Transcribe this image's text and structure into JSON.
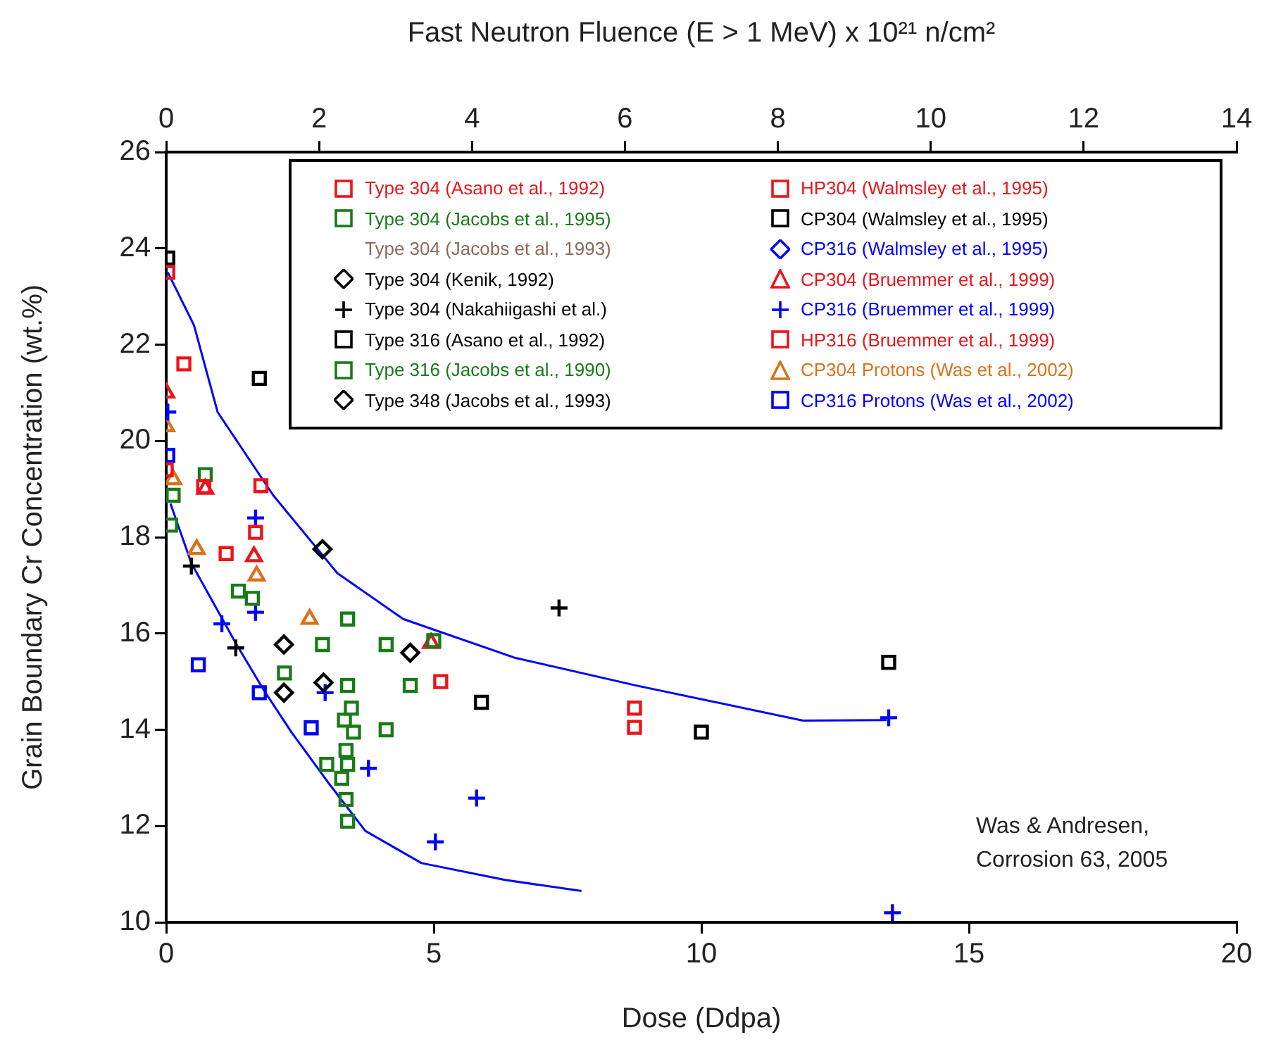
{
  "chart_data": {
    "type": "scatter",
    "xlabel": "Dose (Ddpa)",
    "ylabel": "Grain Boundary Cr Concentration (wt.%)",
    "x2label": "Fast Neutron Fluence (E > 1 MeV) x 10²¹ n/cm²",
    "xlim": [
      0,
      20
    ],
    "xticks": [
      0,
      5,
      10,
      15,
      20
    ],
    "x2lim": [
      0,
      14
    ],
    "x2ticks": [
      0,
      2,
      4,
      6,
      8,
      10,
      12,
      14
    ],
    "ylim": [
      10,
      26
    ],
    "yticks": [
      10,
      12,
      14,
      16,
      18,
      20,
      22,
      24,
      26
    ],
    "grid": false,
    "legend": "top right",
    "annotations": [
      "Was & Andresen,",
      "Corrosion 63, 2005"
    ],
    "series": [
      {
        "name": "Type 304 (Asano et al., 1992)",
        "color": "#e8161b",
        "marker": "square",
        "x": [
          0.03,
          0.33,
          1.77,
          1.67,
          0.7,
          0
        ],
        "values": [
          23.5,
          21.6,
          19.07,
          18.1,
          19.05,
          19.4
        ]
      },
      {
        "name": "Type 304 (Jacobs et al., 1995)",
        "color": "#1a7a1a",
        "marker": "square",
        "x": [
          0.73,
          0.13,
          1.35,
          1.61,
          2.92,
          2.21,
          4.11,
          5.0,
          4.56,
          4.11,
          3.0
        ],
        "values": [
          19.3,
          18.87,
          16.88,
          16.73,
          15.77,
          15.18,
          15.77,
          15.85,
          14.92,
          14.0,
          13.28
        ]
      },
      {
        "name": "Type 304 (Jacobs et al., 1993)",
        "color": "#8b6a5a",
        "marker": "none"
      },
      {
        "name": "Type 304 (Kenik, 1992)",
        "color": "#000000",
        "marker": "diamond",
        "x": [
          2.92,
          2.2
        ],
        "values": [
          17.75,
          15.77
        ]
      },
      {
        "name": "Type 304 (Nakahiigashi et al.)",
        "color": "#000000",
        "marker": "cross",
        "x": [
          0.47,
          1.3,
          7.34
        ],
        "values": [
          17.4,
          15.7,
          16.53
        ]
      },
      {
        "name": "Type 316 (Asano et al., 1992)",
        "color": "#000000",
        "marker": "square",
        "x": [
          5.89,
          10.0
        ],
        "values": [
          14.57,
          13.95
        ]
      },
      {
        "name": "Type 316 (Jacobs et al., 1990)",
        "color": "#1a7a1a",
        "marker": "square",
        "x": [
          0.08,
          3.39,
          3.39,
          3.46,
          3.33,
          3.5,
          3.36,
          3.39,
          3.28,
          3.36,
          3.39
        ],
        "values": [
          18.25,
          16.3,
          14.92,
          14.45,
          14.2,
          13.95,
          13.57,
          13.28,
          12.99,
          12.55,
          12.1
        ]
      },
      {
        "name": "Type 348 (Jacobs et al., 1993)",
        "color": "#000000",
        "marker": "diamond",
        "x": [
          2.2,
          4.56,
          2.94
        ],
        "values": [
          14.77,
          15.6,
          14.98
        ]
      },
      {
        "name": "HP304 (Walmsley et al., 1995)",
        "color": "#e8161b",
        "marker": "square",
        "x": [
          8.75,
          8.75
        ],
        "values": [
          14.45,
          14.05
        ]
      },
      {
        "name": "CP304 (Walmsley et al., 1995)",
        "color": "#000000",
        "marker": "square",
        "x": [
          0.03,
          1.74,
          13.5
        ],
        "values": [
          23.8,
          21.3,
          15.4
        ]
      },
      {
        "name": "CP316 (Walmsley et al., 1995)",
        "color": "#0000ff",
        "marker": "diamond"
      },
      {
        "name": "CP304 (Bruemmer et al., 1999)",
        "color": "#e8161b",
        "marker": "triangle",
        "x": [
          0,
          1.64,
          4.95,
          0.73
        ],
        "values": [
          21.0,
          17.6,
          15.8,
          19.0
        ]
      },
      {
        "name": "CP316 (Bruemmer et al., 1999)",
        "color": "#0000ff",
        "marker": "cross",
        "x": [
          0.03,
          1.67,
          1.67,
          1.04,
          2.97,
          3.78,
          5.8,
          5.03,
          13.5,
          13.57
        ],
        "values": [
          20.6,
          18.4,
          16.44,
          16.2,
          14.77,
          13.2,
          12.58,
          11.67,
          14.25,
          10.2
        ]
      },
      {
        "name": "HP316 (Bruemmer et al., 1999)",
        "color": "#e8161b",
        "marker": "square",
        "x": [
          1.12,
          5.13
        ],
        "values": [
          17.66,
          15.0
        ]
      },
      {
        "name": "CP304 Protons (Was et al., 2002)",
        "color": "#d9731a",
        "marker": "triangle",
        "x": [
          0,
          0.13,
          0.57,
          1.69,
          2.68
        ],
        "values": [
          20.3,
          19.2,
          17.75,
          17.2,
          16.3
        ]
      },
      {
        "name": "CP316 Protons (Was et al., 2002)",
        "color": "#0000ff",
        "marker": "square",
        "x": [
          0.03,
          0.6,
          1.74,
          2.71
        ],
        "values": [
          19.7,
          15.35,
          14.77,
          14.04
        ]
      },
      {
        "type": "line",
        "color": "#0000ff",
        "marker": "none",
        "x": [
          0.03,
          0.52,
          0.96,
          2.0,
          3.2,
          4.43,
          6.5,
          8.78,
          11.9,
          13.46
        ],
        "values": [
          23.5,
          22.4,
          20.6,
          18.87,
          17.25,
          16.3,
          15.5,
          14.92,
          14.19,
          14.2
        ]
      },
      {
        "type": "line",
        "color": "#0000ff",
        "marker": "none",
        "x": [
          0.08,
          0.47,
          1.3,
          1.82,
          2.34,
          3.05,
          3.72,
          4.77,
          6.33,
          7.76
        ],
        "values": [
          18.7,
          17.46,
          15.8,
          14.83,
          13.95,
          12.87,
          11.9,
          11.23,
          10.88,
          10.65
        ]
      }
    ]
  }
}
